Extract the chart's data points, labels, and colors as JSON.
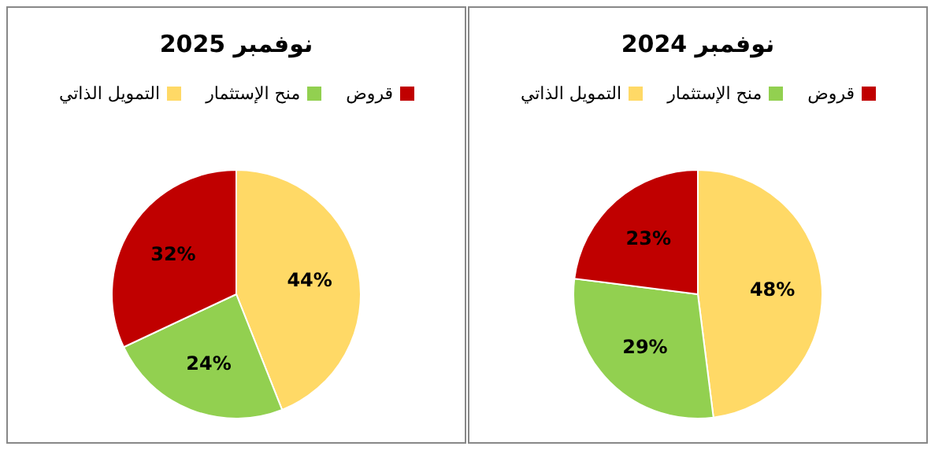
{
  "chart_data": [
    {
      "type": "pie",
      "title": "نوفمبر 2025",
      "categories": [
        "التمويل الذاتي",
        "منح الإستثمار",
        "قروض"
      ],
      "values": [
        44,
        24,
        32
      ],
      "value_labels": [
        "44%",
        "24%",
        "32%"
      ],
      "colors": [
        "#ffd966",
        "#92d050",
        "#c00000"
      ],
      "legend": "top"
    },
    {
      "type": "pie",
      "title": "نوفمبر 2024",
      "categories": [
        "التمويل الذاتي",
        "منح الإستثمار",
        "قروض"
      ],
      "values": [
        48,
        29,
        23
      ],
      "value_labels": [
        "48%",
        "29%",
        "23%"
      ],
      "colors": [
        "#ffd966",
        "#92d050",
        "#c00000"
      ],
      "legend": "top"
    }
  ]
}
